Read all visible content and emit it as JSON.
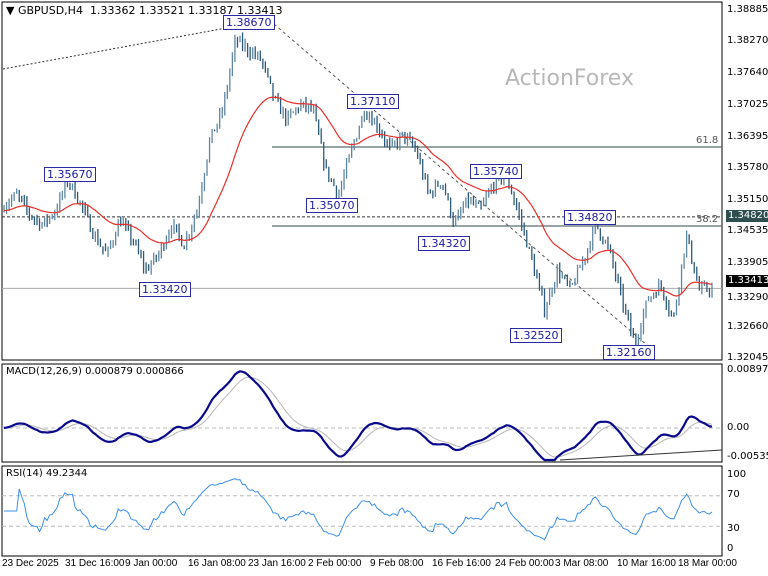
{
  "header": {
    "symbol": "GBPUSD,H4",
    "open": "1.33362",
    "high": "1.33521",
    "low": "1.33187",
    "close": "1.33413"
  },
  "watermark": "ActionForex",
  "colors": {
    "bars": "#5f87a3",
    "ma": "#e8302a",
    "macd": "#0a0a8c",
    "signal": "#b8b8b8",
    "rsi": "#3d8fe8",
    "label_border": "#2a2aa8",
    "current_price_tag": "#000000",
    "level_tag": "#2f4f4f"
  },
  "chart_data": {
    "type": "candlestick-bar",
    "instrument": "GBPUSD",
    "timeframe": "H4",
    "price_axis": {
      "ticks": [
        "1.38885",
        "1.38270",
        "1.37640",
        "1.37025",
        "1.36395",
        "1.35780",
        "1.35150",
        "1.34535",
        "1.33905",
        "1.33290",
        "1.32660",
        "1.32045"
      ],
      "range": [
        1.32045,
        1.38885
      ]
    },
    "time_axis": {
      "ticks": [
        "23 Dec 2025",
        "31 Dec 16:00",
        "9 Jan 00:00",
        "16 Jan 08:00",
        "23 Jan 16:00",
        "2 Feb 00:00",
        "9 Feb 08:00",
        "16 Feb 16:00",
        "24 Feb 00:00",
        "3 Mar 08:00",
        "10 Mar 16:00",
        "18 Mar 00:00"
      ]
    },
    "approx_closes": [
      1.3505,
      1.3525,
      1.3486,
      1.3466,
      1.3495,
      1.3554,
      1.3505,
      1.3446,
      1.3407,
      1.3476,
      1.3436,
      1.3377,
      1.3407,
      1.3466,
      1.3427,
      1.3495,
      1.3633,
      1.3692,
      1.383,
      1.381,
      1.379,
      1.3712,
      1.3672,
      1.3702,
      1.3692,
      1.3574,
      1.3525,
      1.3613,
      1.3692,
      1.3662,
      1.3613,
      1.3643,
      1.3613,
      1.3525,
      1.3554,
      1.3466,
      1.3515,
      1.3495,
      1.3545,
      1.3564,
      1.3486,
      1.3397,
      1.3299,
      1.3377,
      1.3338,
      1.3397,
      1.3466,
      1.3417,
      1.3319,
      1.323,
      1.3319,
      1.3348,
      1.3279,
      1.3446,
      1.3338,
      1.33413
    ],
    "current_price": "1.33413",
    "level_line": "1.34820",
    "swing_labels": [
      "1.38670",
      "1.37110",
      "1.35670",
      "1.35070",
      "1.35740",
      "1.34320",
      "1.34820",
      "1.33420",
      "1.32520",
      "1.32160"
    ],
    "fibonacci": [
      "61.8",
      "38.2"
    ],
    "macd": {
      "label": "MACD(12,26,9) 0.000879 0.000866",
      "ticks": [
        "0.008972",
        "0.00",
        "-0.005356"
      ],
      "range": [
        -0.005356,
        0.008972
      ]
    },
    "rsi": {
      "label": "RSI(14) 49.2344",
      "ticks": [
        "100",
        "70",
        "30",
        "0"
      ],
      "range": [
        0,
        100
      ],
      "levels": [
        70,
        30
      ]
    }
  }
}
